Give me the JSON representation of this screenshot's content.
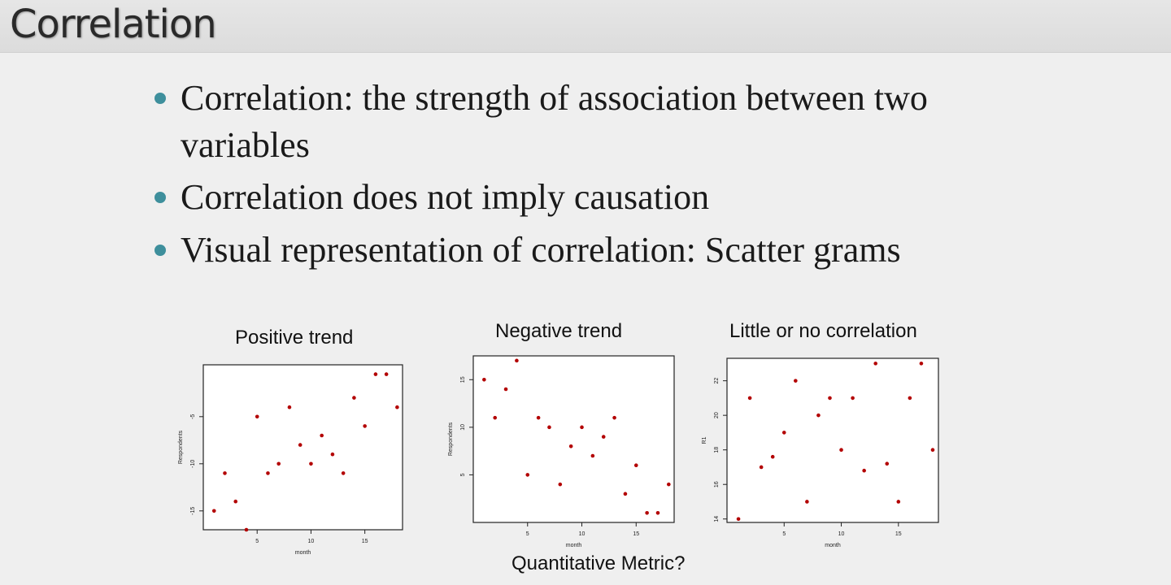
{
  "slide": {
    "title": "Correlation",
    "bullets": [
      {
        "line1": "Correlation: the strength of association between two",
        "line2": "variables"
      },
      {
        "line1": "Correlation does not imply causation"
      },
      {
        "line1": "Visual representation  of correlation: Scatter grams"
      }
    ],
    "footer": "Quantitative Metric?"
  },
  "chart_data": [
    {
      "type": "scatter",
      "title": "Positive trend",
      "xlabel": "month",
      "ylabel": "Respondents",
      "xlim": [
        0,
        18.5
      ],
      "ylim": [
        -17,
        0.5
      ],
      "xticks": [
        5,
        10,
        15
      ],
      "yticks": [
        -15,
        -10,
        -5
      ],
      "ytick_labels": [
        "-15",
        "-10",
        "-5"
      ],
      "point_color": "#b30000",
      "x": [
        1,
        2,
        3,
        4,
        5,
        6,
        7,
        8,
        9,
        10,
        11,
        12,
        13,
        14,
        15,
        16,
        17,
        18
      ],
      "y": [
        -15,
        -11,
        -14,
        -17,
        -5,
        -11,
        -10,
        -4,
        -8,
        -10,
        -7,
        -9,
        -11,
        -3,
        -6,
        -0.5,
        -0.5,
        -4
      ]
    },
    {
      "type": "scatter",
      "title": "Negative trend",
      "xlabel": "month",
      "ylabel": "Respondents",
      "xlim": [
        0,
        18.5
      ],
      "ylim": [
        0,
        17.5
      ],
      "xticks": [
        5,
        10,
        15
      ],
      "yticks": [
        5,
        10,
        15
      ],
      "ytick_labels": [
        "5",
        "10",
        "15"
      ],
      "point_color": "#b30000",
      "x": [
        1,
        2,
        3,
        4,
        5,
        6,
        7,
        8,
        9,
        10,
        11,
        12,
        13,
        14,
        15,
        16,
        17,
        18
      ],
      "y": [
        15,
        11,
        14,
        17,
        5,
        11,
        10,
        4,
        8,
        10,
        7,
        9,
        11,
        3,
        6,
        1,
        1,
        4
      ]
    },
    {
      "type": "scatter",
      "title": "Little or no correlation",
      "xlabel": "month",
      "ylabel": "R1",
      "xlim": [
        0,
        18.5
      ],
      "ylim": [
        13.8,
        23.3
      ],
      "xticks": [
        5,
        10,
        15
      ],
      "yticks": [
        14,
        16,
        18,
        20,
        22
      ],
      "ytick_labels": [
        "14",
        "16",
        "18",
        "20",
        "22"
      ],
      "point_color": "#b30000",
      "x": [
        1,
        2,
        3,
        4,
        5,
        6,
        7,
        8,
        9,
        10,
        11,
        12,
        13,
        14,
        15,
        16,
        17,
        18
      ],
      "y": [
        14,
        21,
        17,
        17.6,
        19,
        22,
        15,
        20,
        21,
        18,
        21,
        16.8,
        23,
        17.2,
        15,
        21,
        23,
        18
      ]
    }
  ]
}
